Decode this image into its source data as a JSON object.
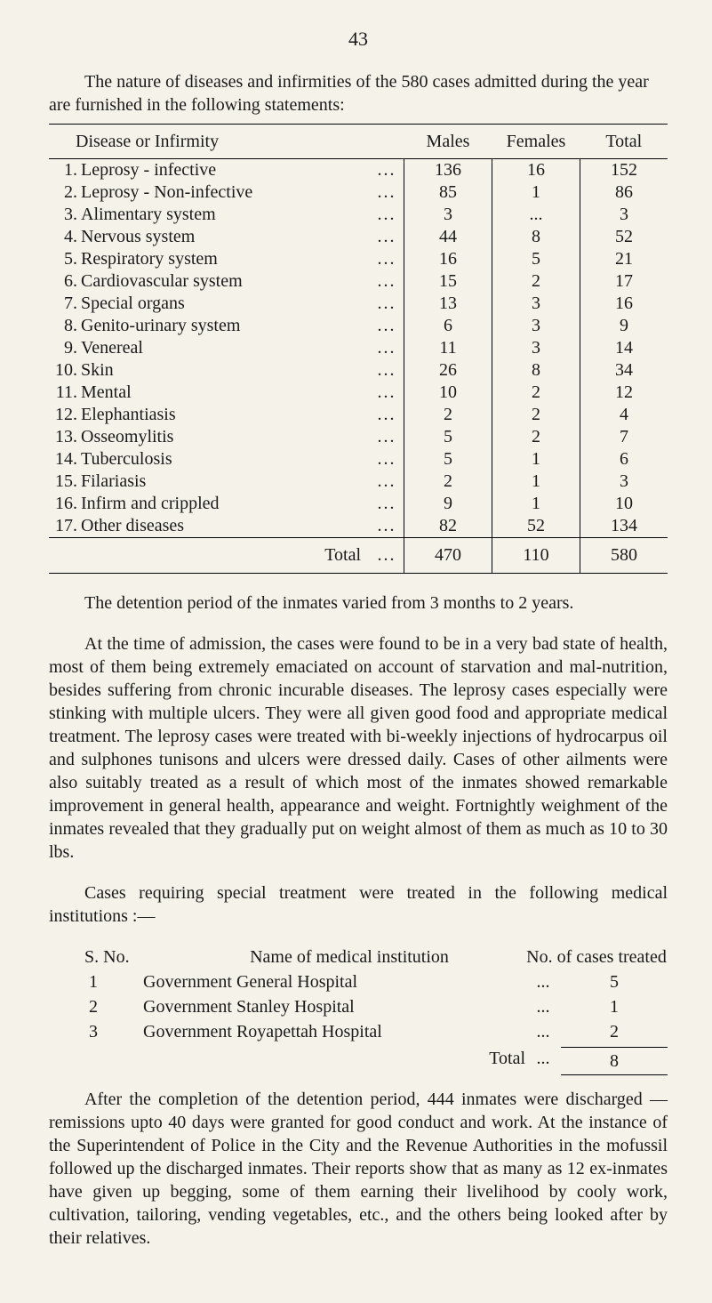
{
  "page_number": "43",
  "intro": "The nature of diseases and infirmities of the 580 cases admitted during the year are furnished in the following statements:",
  "table": {
    "headers": [
      "Disease or Infirmity",
      "Males",
      "Females",
      "Total"
    ],
    "rows": [
      {
        "n": "1.",
        "name": "Leprosy - infective",
        "m": "136",
        "f": "16",
        "t": "152"
      },
      {
        "n": "2.",
        "name": "Leprosy - Non-infective",
        "m": "85",
        "f": "1",
        "t": "86"
      },
      {
        "n": "3.",
        "name": "Alimentary system",
        "m": "3",
        "f": "...",
        "t": "3"
      },
      {
        "n": "4.",
        "name": "Nervous system",
        "m": "44",
        "f": "8",
        "t": "52"
      },
      {
        "n": "5.",
        "name": "Respiratory system",
        "m": "16",
        "f": "5",
        "t": "21"
      },
      {
        "n": "6.",
        "name": "Cardiovascular system",
        "m": "15",
        "f": "2",
        "t": "17"
      },
      {
        "n": "7.",
        "name": "Special organs",
        "m": "13",
        "f": "3",
        "t": "16"
      },
      {
        "n": "8.",
        "name": "Genito-urinary system",
        "m": "6",
        "f": "3",
        "t": "9"
      },
      {
        "n": "9.",
        "name": "Venereal",
        "m": "11",
        "f": "3",
        "t": "14"
      },
      {
        "n": "10.",
        "name": "Skin",
        "m": "26",
        "f": "8",
        "t": "34"
      },
      {
        "n": "11.",
        "name": "Mental",
        "m": "10",
        "f": "2",
        "t": "12"
      },
      {
        "n": "12.",
        "name": "Elephantiasis",
        "m": "2",
        "f": "2",
        "t": "4"
      },
      {
        "n": "13.",
        "name": "Osseomylitis",
        "m": "5",
        "f": "2",
        "t": "7"
      },
      {
        "n": "14.",
        "name": "Tuberculosis",
        "m": "5",
        "f": "1",
        "t": "6"
      },
      {
        "n": "15.",
        "name": "Filariasis",
        "m": "2",
        "f": "1",
        "t": "3"
      },
      {
        "n": "16.",
        "name": "Infirm and crippled",
        "m": "9",
        "f": "1",
        "t": "10"
      },
      {
        "n": "17.",
        "name": "Other diseases",
        "m": "82",
        "f": "52",
        "t": "134"
      }
    ],
    "total": {
      "label": "Total",
      "dots": "...",
      "m": "470",
      "f": "110",
      "t": "580"
    }
  },
  "para_detention": "The detention period of the inmates varied from 3 months to 2 years.",
  "para_admission": "At the time of admission, the cases were found to be in a very bad state of health, most of them being extremely emaciated on account of starvation and mal-nutrition, besides suffering from chronic incurable diseases. The leprosy cases especially were stinking with multiple ulcers. They were all given good food and appropriate medical treatment. The leprosy cases were treated with bi-weekly injections of hydrocarpus oil and sulphones tunisons and ulcers were dressed daily. Cases of other ailments were also suitably treated as a result of which most of the inmates showed remarkable improvement in general health, appearance and weight. Fortnightly weighment of the inmates revealed that they gradually put on weight almost of them as much as 10 to 30 lbs.",
  "para_cases": "Cases requiring special treatment were treated in the following medical institutions :—",
  "inst": {
    "headers": {
      "sno": "S. No.",
      "name": "Name of medical institution",
      "count": "No. of cases treated"
    },
    "rows": [
      {
        "n": "1",
        "name": "Government General Hospital",
        "d": "...",
        "v": "5"
      },
      {
        "n": "2",
        "name": "Government Stanley Hospital",
        "d": "...",
        "v": "1"
      },
      {
        "n": "3",
        "name": "Government Royapettah Hospital",
        "d": "...",
        "v": "2"
      }
    ],
    "total": {
      "label": "Total",
      "d": "...",
      "v": "8"
    }
  },
  "para_after": "After the completion of the detention period, 444 inmates were discharged —remissions upto 40 days were granted for good conduct and work. At the instance of the Superintendent of Police in the City and the Revenue Authorities in the mofussil followed up the discharged inmates. Their reports show that as many as 12 ex-inmates have given up begging, some of them earning their livelihood by cooly work, cultivation, tailoring, vending vegetables, etc., and the others being looked after by their relatives."
}
